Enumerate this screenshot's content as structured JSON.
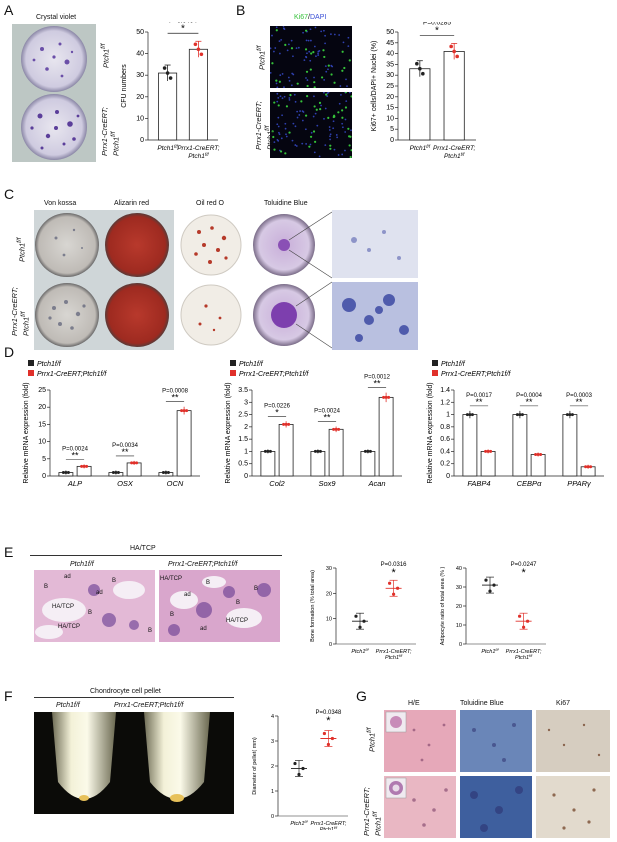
{
  "panels": {
    "A": {
      "letter": "A",
      "title": "Crystal violet",
      "row1": "Ptch1",
      "row1_sup": "f/f",
      "row2a": "Prrx1-CreERT;",
      "row2b": "Ptch1",
      "row2_sup": "f/f"
    },
    "B": {
      "letter": "B",
      "title_ki67": "Ki67",
      "title_sep": "/",
      "title_dapi": "DAPI",
      "row1": "Ptch1",
      "row1_sup": "f/f",
      "row2a": "Prrx1-CreERT;",
      "row2b": "Ptch1",
      "row2_sup": "f/f"
    },
    "C": {
      "letter": "C",
      "titles": [
        "Von kossa",
        "Alizarin red",
        "Oil red O",
        "Toluidine Blue"
      ],
      "row1": "Ptch1",
      "row1_sup": "f/f",
      "row2a": "Prrx1-CreERT;",
      "row2b": "Ptch1",
      "row2_sup": "f/f"
    },
    "D": {
      "letter": "D",
      "legend1": "Ptch1f/f",
      "legend2": "Prrx1-CreERT;Ptch1f/f"
    },
    "E": {
      "letter": "E",
      "title": "HA/TCP",
      "col1": "Ptch1f/f",
      "col2": "Prrx1-CreERT;Ptch1f/f",
      "tags": [
        "B",
        "ad",
        "HA/TCP",
        "ad",
        "B",
        "B",
        "HA/TCP",
        "HA/TCP",
        "B",
        "ad",
        "B",
        "B",
        "HA/TCP",
        "B",
        "ad",
        "B"
      ]
    },
    "F": {
      "letter": "F",
      "title": "Chondrocyte cell pellet",
      "col1": "Ptch1f/f",
      "col2": "Prrx1-CreERT;Ptch1f/f"
    },
    "G": {
      "letter": "G",
      "titles": [
        "H/E",
        "Toluidine Blue",
        "Ki67"
      ],
      "row1": "Ptch1",
      "row1_sup": "f/f",
      "row2a": "Prrx1-CreERT;",
      "row2b": "Ptch1",
      "row2_sup": "f/f"
    }
  },
  "colors": {
    "control": "#222222",
    "mutant": "#e0302a",
    "ki67": "#35c23a",
    "dapi": "#3a4fd6"
  },
  "chart_data": [
    {
      "id": "A-cfu",
      "type": "bar",
      "categories": [
        "Ptch1f/f",
        "Prrx1-CreERT; Ptch1f/f"
      ],
      "values": [
        31,
        42
      ],
      "ylabel": "CFU numbers",
      "ylim": [
        0,
        50
      ],
      "yticks": [
        0,
        10,
        20,
        30,
        40,
        50
      ],
      "pvalue": "P=0.0404",
      "sig": "*"
    },
    {
      "id": "B-ki67",
      "type": "bar",
      "categories": [
        "Ptch1f/f",
        "Prrx1-CreERT; Ptch1f/f"
      ],
      "values": [
        33,
        41
      ],
      "ylabel": "Ki67+ cells/DAPI+ Nuclei (%)",
      "ylim": [
        0,
        50
      ],
      "yticks": [
        0,
        5,
        10,
        15,
        20,
        25,
        30,
        35,
        40,
        45,
        50
      ],
      "pvalue": "P=0.0285",
      "sig": "*"
    },
    {
      "id": "D-osteo",
      "type": "bar",
      "categories": [
        "ALP",
        "OSX",
        "OCN"
      ],
      "series": [
        {
          "name": "Ptch1f/f",
          "values": [
            1,
            1,
            1
          ]
        },
        {
          "name": "Prrx1-CreERT;Ptch1f/f",
          "values": [
            2.8,
            3.8,
            19
          ]
        }
      ],
      "ylabel": "Relative mRNA expression (fold)",
      "ylim": [
        0,
        25
      ],
      "yticks": [
        0,
        5,
        10,
        15,
        20,
        25
      ],
      "pvalues": [
        "P=0.0024",
        "P=0.0034",
        "P=0.0008"
      ],
      "sig": [
        "**",
        "**",
        "**"
      ]
    },
    {
      "id": "D-chondro",
      "type": "bar",
      "categories": [
        "Col2",
        "Sox9",
        "Acan"
      ],
      "series": [
        {
          "name": "Ptch1f/f",
          "values": [
            1,
            1,
            1
          ]
        },
        {
          "name": "Prrx1-CreERT;Ptch1f/f",
          "values": [
            2.1,
            1.9,
            3.2
          ]
        }
      ],
      "ylabel": "Relative mRNA expression (fold)",
      "ylim": [
        0,
        3.5
      ],
      "yticks": [
        0,
        0.5,
        1.0,
        1.5,
        2.0,
        2.5,
        3.0,
        3.5
      ],
      "pvalues": [
        "P=0.0226",
        "P=0.0024",
        "P=0.0012"
      ],
      "sig": [
        "*",
        "**",
        "**"
      ]
    },
    {
      "id": "D-adipo",
      "type": "bar",
      "categories": [
        "FABP4",
        "CEBPα",
        "PPARγ"
      ],
      "series": [
        {
          "name": "Ptch1f/f",
          "values": [
            1,
            1,
            1
          ]
        },
        {
          "name": "Prrx1-CreERT;Ptch1f/f",
          "values": [
            0.4,
            0.35,
            0.15
          ]
        }
      ],
      "ylabel": "Relative mRNA expression (fold)",
      "ylim": [
        0,
        1.4
      ],
      "yticks": [
        0,
        0.2,
        0.4,
        0.6,
        0.8,
        1.0,
        1.2,
        1.4
      ],
      "pvalues": [
        "P=0.0017",
        "P=0.0004",
        "P=0.0003"
      ],
      "sig": [
        "**",
        "**",
        "**"
      ]
    },
    {
      "id": "E-bone",
      "type": "scatter",
      "categories": [
        "Ptch1f/f",
        "Prrx1-CreERT; Ptch1f/f"
      ],
      "values": [
        9,
        22
      ],
      "ylabel": "Bone formation (% total area)",
      "ylim": [
        0,
        30
      ],
      "yticks": [
        0,
        10,
        20,
        30
      ],
      "pvalue": "P=0.0316",
      "sig": "*"
    },
    {
      "id": "E-adipo",
      "type": "scatter",
      "categories": [
        "Ptch1f/f",
        "Prrx1-CreERT; Ptch1f/f"
      ],
      "values": [
        31,
        12
      ],
      "ylabel": "Adipocyte ratio of total area (% )",
      "ylim": [
        0,
        40
      ],
      "yticks": [
        0,
        10,
        20,
        30,
        40
      ],
      "pvalue": "P=0.0247",
      "sig": "*"
    },
    {
      "id": "F-pellet",
      "type": "scatter",
      "categories": [
        "Ptch1f/f",
        "Prrx1-CreERT; Ptch1f/f"
      ],
      "values": [
        1.9,
        3.1
      ],
      "ylabel": "Diameter of pellet( mm)",
      "ylim": [
        0,
        4
      ],
      "yticks": [
        0,
        1,
        2,
        3,
        4
      ],
      "pvalue": "P=0.0348",
      "sig": "*"
    }
  ]
}
